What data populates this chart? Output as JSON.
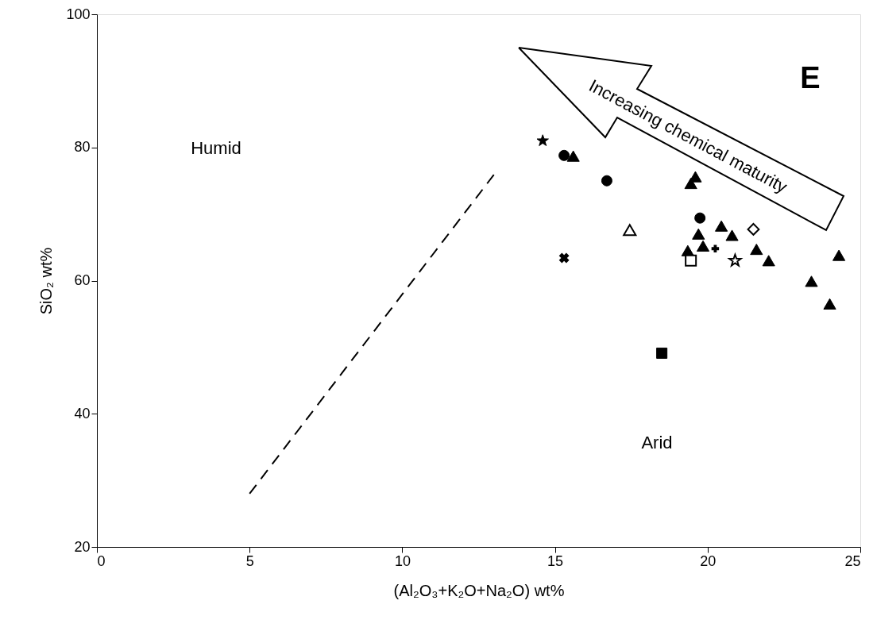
{
  "chart_data": {
    "type": "scatter",
    "xlabel": "(Al₂O₃+K₂O+Na₂O) wt%",
    "ylabel": "SiO₂ wt%",
    "xlim": [
      0,
      25
    ],
    "xticks": [
      0,
      5,
      10,
      15,
      20,
      25
    ],
    "ylim": [
      20,
      100
    ],
    "yticks": [
      20,
      40,
      60,
      80,
      100
    ],
    "grid": false,
    "annotations": [
      "Humid",
      "Arid",
      "E",
      "Increasing chemical maturity"
    ],
    "series": [
      {
        "marker": "star",
        "color": "#000000",
        "x": [
          14.6
        ],
        "values": [
          81.0
        ]
      },
      {
        "marker": "circle",
        "color": "#000000",
        "x": [
          15.3,
          16.7,
          19.75
        ],
        "values": [
          78.8,
          75.0,
          69.4
        ]
      },
      {
        "marker": "triangle",
        "color": "#000000",
        "x": [
          15.6,
          19.45,
          19.6,
          19.7,
          20.45,
          20.8,
          19.35,
          19.85,
          21.6,
          22.0,
          24.3,
          23.4,
          24.0
        ],
        "values": [
          78.7,
          74.6,
          75.6,
          67.0,
          68.2,
          66.8,
          64.5,
          65.2,
          64.7,
          63.0,
          63.8,
          59.9,
          56.5
        ]
      },
      {
        "marker": "triangle-open",
        "color": "#000000",
        "x": [
          17.45
        ],
        "values": [
          67.6
        ]
      },
      {
        "marker": "diamond-open",
        "color": "#000000",
        "x": [
          21.5
        ],
        "values": [
          67.7
        ]
      },
      {
        "marker": "square-open",
        "color": "#000000",
        "x": [
          19.45
        ],
        "values": [
          63.0
        ]
      },
      {
        "marker": "star-open",
        "color": "#000000",
        "x": [
          20.9
        ],
        "values": [
          63.0
        ]
      },
      {
        "marker": "cross",
        "color": "#000000",
        "x": [
          20.25
        ],
        "values": [
          64.8
        ]
      },
      {
        "marker": "x",
        "color": "#000000",
        "x": [
          15.3
        ],
        "values": [
          63.4
        ]
      },
      {
        "marker": "square",
        "color": "#000000",
        "x": [
          18.5
        ],
        "values": [
          49.1
        ]
      },
      {
        "type": "line",
        "marker": "none",
        "line_style": "dashed",
        "color": "#000000",
        "x": [
          5,
          13.0
        ],
        "values": [
          28,
          75.9
        ]
      }
    ]
  }
}
